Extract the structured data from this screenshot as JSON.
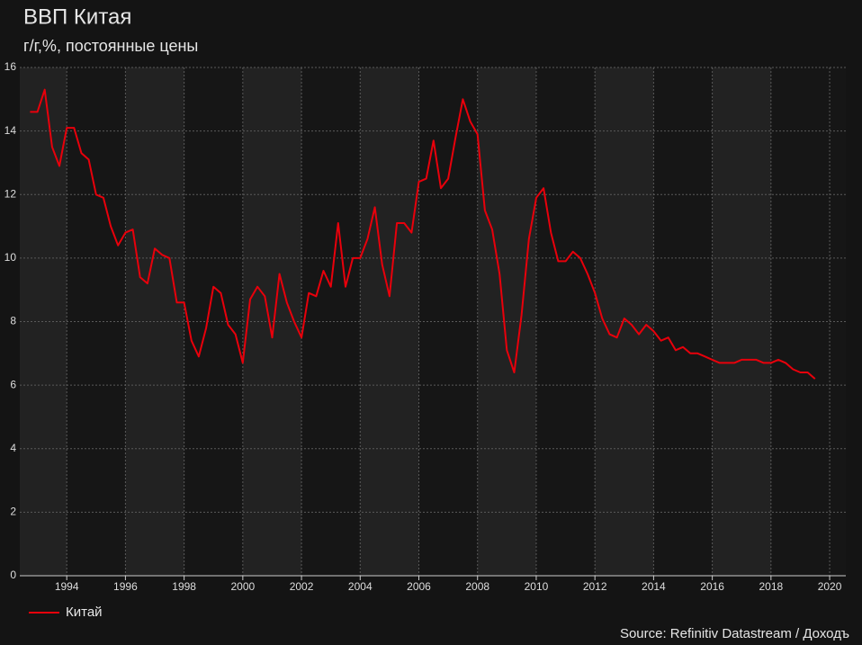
{
  "chart_data": {
    "type": "line",
    "title": "ВВП Китая",
    "subtitle": "г/г,%, постоянные цены",
    "source": "Source: Refinitiv Datastream / Доходъ",
    "x": [
      1992.75,
      1993,
      1993.25,
      1993.5,
      1993.75,
      1994,
      1994.25,
      1994.5,
      1994.75,
      1995,
      1995.25,
      1995.5,
      1995.75,
      1996,
      1996.25,
      1996.5,
      1996.75,
      1997,
      1997.25,
      1997.5,
      1997.75,
      1998,
      1998.25,
      1998.5,
      1998.75,
      1999,
      1999.25,
      1999.5,
      1999.75,
      2000,
      2000.25,
      2000.5,
      2000.75,
      2001,
      2001.25,
      2001.5,
      2001.75,
      2002,
      2002.25,
      2002.5,
      2002.75,
      2003,
      2003.25,
      2003.5,
      2003.75,
      2004,
      2004.25,
      2004.5,
      2004.75,
      2005,
      2005.25,
      2005.5,
      2005.75,
      2006,
      2006.25,
      2006.5,
      2006.75,
      2007,
      2007.25,
      2007.5,
      2007.75,
      2008,
      2008.25,
      2008.5,
      2008.75,
      2009,
      2009.25,
      2009.5,
      2009.75,
      2010,
      2010.25,
      2010.5,
      2010.75,
      2011,
      2011.25,
      2011.5,
      2011.75,
      2012,
      2012.25,
      2012.5,
      2012.75,
      2013,
      2013.25,
      2013.5,
      2013.75,
      2014,
      2014.25,
      2014.5,
      2014.75,
      2015,
      2015.25,
      2015.5,
      2015.75,
      2016,
      2016.25,
      2016.5,
      2016.75,
      2017,
      2017.25,
      2017.5,
      2017.75,
      2018,
      2018.25,
      2018.5,
      2018.75,
      2019,
      2019.25,
      2019.5
    ],
    "series": [
      {
        "name": "Китай",
        "color": "#e8000b",
        "values": [
          14.6,
          14.6,
          15.3,
          13.5,
          12.9,
          14.1,
          14.1,
          13.3,
          13.1,
          12.0,
          11.9,
          11.0,
          10.4,
          10.8,
          10.9,
          9.4,
          9.2,
          10.3,
          10.1,
          10.0,
          8.6,
          8.6,
          7.4,
          6.9,
          7.8,
          9.1,
          8.9,
          7.9,
          7.6,
          6.7,
          8.7,
          9.1,
          8.8,
          7.5,
          9.5,
          8.6,
          8.0,
          7.5,
          8.9,
          8.8,
          9.6,
          9.1,
          11.1,
          9.1,
          10.0,
          10.0,
          10.6,
          11.6,
          9.8,
          8.8,
          11.1,
          11.1,
          10.8,
          12.4,
          12.5,
          13.7,
          12.2,
          12.5,
          13.8,
          15.0,
          14.3,
          13.9,
          11.5,
          10.9,
          9.5,
          7.1,
          6.4,
          8.2,
          10.6,
          11.9,
          12.2,
          10.8,
          9.9,
          9.9,
          10.2,
          10.0,
          9.5,
          8.9,
          8.1,
          7.6,
          7.5,
          8.1,
          7.9,
          7.6,
          7.9,
          7.7,
          7.4,
          7.5,
          7.1,
          7.2,
          7.0,
          7.0,
          6.9,
          6.8,
          6.7,
          6.7,
          6.7,
          6.8,
          6.8,
          6.8,
          6.7,
          6.7,
          6.8,
          6.7,
          6.5,
          6.4,
          6.4,
          6.2
        ]
      }
    ],
    "xlim": [
      1992.4,
      2020.55
    ],
    "xticks": [
      1994,
      1996,
      1998,
      2000,
      2002,
      2004,
      2006,
      2008,
      2010,
      2012,
      2014,
      2016,
      2018,
      2020
    ],
    "ylim": [
      0,
      16
    ],
    "yticks": [
      0,
      2,
      4,
      6,
      8,
      10,
      12,
      14,
      16
    ],
    "grid": true,
    "legend": "bottom-left"
  }
}
